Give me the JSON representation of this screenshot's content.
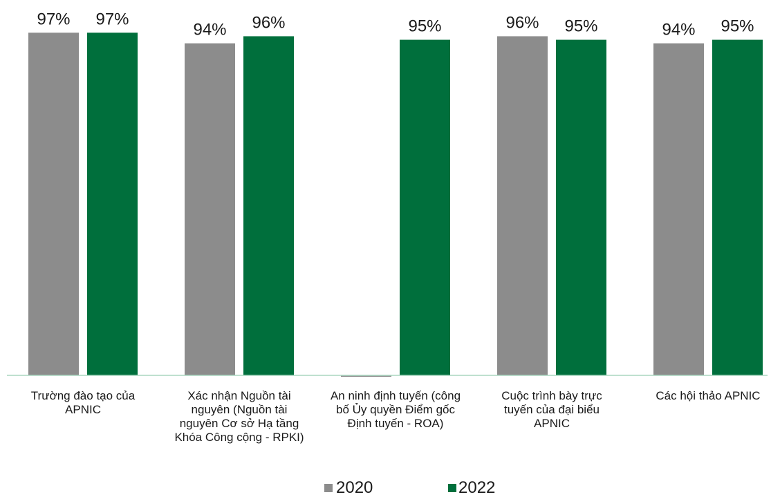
{
  "chart_data": {
    "type": "bar",
    "categories": [
      [
        "Trường đào tạo của",
        "APNIC"
      ],
      [
        "Xác nhận Nguồn tài",
        "nguyên (Nguồn tài",
        "nguyên Cơ sở Hạ tầng",
        "Khóa Công cộng - RPKI)"
      ],
      [
        "An ninh định tuyến (công",
        "bố Ủy quyền Điểm gốc",
        "Định tuyến - ROA)"
      ],
      [
        "Cuộc trình bày trực",
        "tuyến của đại biểu",
        "APNIC"
      ],
      [
        "Các hội thảo APNIC"
      ]
    ],
    "series": [
      {
        "name": "2020",
        "color": "#8c8c8c",
        "values": [
          97,
          94,
          null,
          96,
          94
        ],
        "labels": [
          "97%",
          "94%",
          "",
          "96%",
          "94%"
        ]
      },
      {
        "name": "2022",
        "color": "#006f3c",
        "values": [
          97,
          96,
          95,
          95,
          95
        ],
        "labels": [
          "97%",
          "96%",
          "95%",
          "95%",
          "95%"
        ]
      }
    ],
    "ylim": [
      0,
      100
    ],
    "grid": false,
    "legend_position": "bottom",
    "axis_color": "#a8d5bf"
  }
}
